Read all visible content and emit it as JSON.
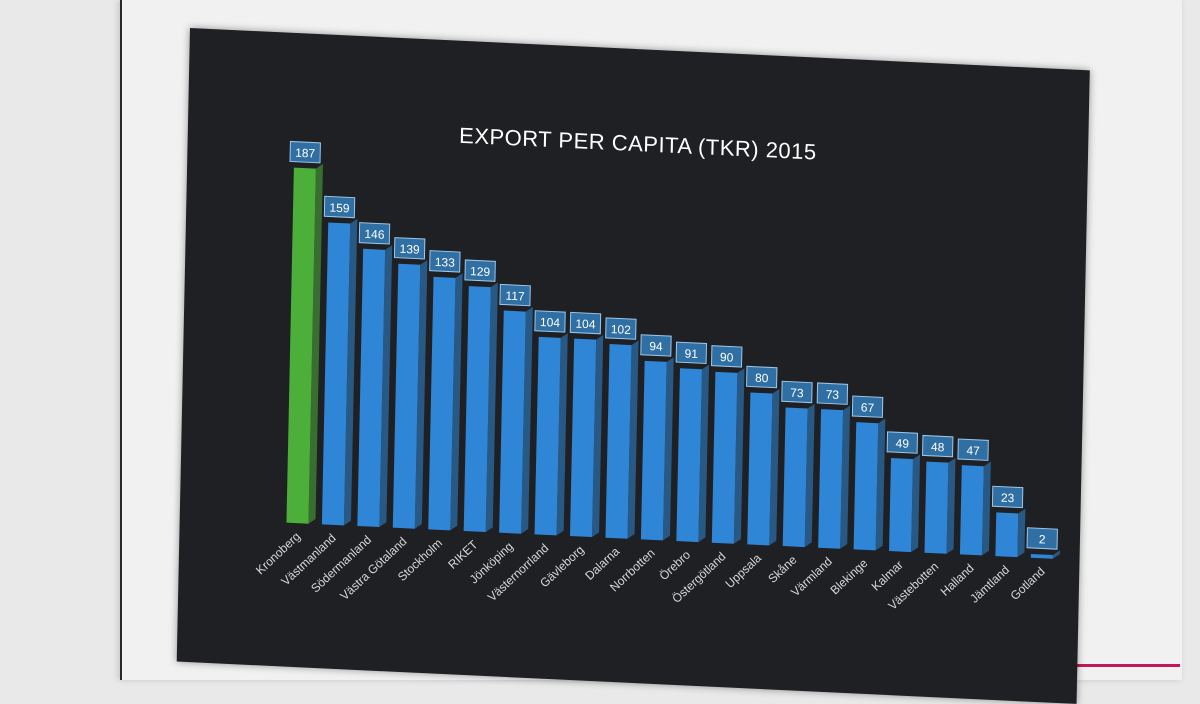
{
  "chart_data": {
    "type": "bar",
    "title": "EXPORT PER CAPITA (TKR) 2015",
    "xlabel": "",
    "ylabel": "",
    "ylim": [
      0,
      200
    ],
    "grid": false,
    "categories": [
      "Kronoberg",
      "Västmanland",
      "Södermanland",
      "Västra Götaland",
      "Stockholm",
      "RIKET",
      "Jönköping",
      "Västernorrland",
      "Gävleborg",
      "Dalarna",
      "Norrbotten",
      "Örebro",
      "Östergötland",
      "Uppsala",
      "Skåne",
      "Värmland",
      "Blekinge",
      "Kalmar",
      "Västebotten",
      "Halland",
      "Jämtland",
      "Gotland"
    ],
    "values": [
      187,
      159,
      146,
      139,
      133,
      129,
      117,
      104,
      104,
      102,
      94,
      91,
      90,
      80,
      73,
      73,
      67,
      49,
      48,
      47,
      23,
      2
    ],
    "highlight_index": 0,
    "colors": {
      "highlight": "#4caf3a",
      "bar": "#2f86d6",
      "label_box": "#2f6fa3",
      "background": "#1f2023"
    }
  }
}
